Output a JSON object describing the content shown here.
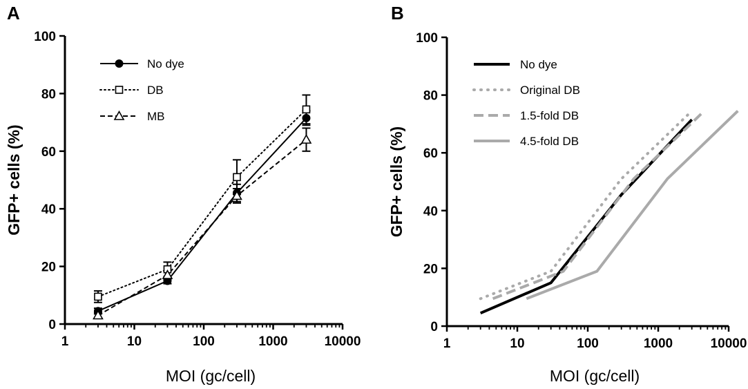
{
  "chart_data": [
    {
      "panel_label": "A",
      "type": "line",
      "xlabel": "MOI (gc/cell)",
      "ylabel": "GFP+ cells (%)",
      "x_scale": "log",
      "xlim": [
        1,
        10000
      ],
      "ylim": [
        0,
        100
      ],
      "x_ticks": [
        "1",
        "10",
        "100",
        "1000",
        "10000"
      ],
      "y_ticks": [
        "0",
        "20",
        "40",
        "60",
        "80",
        "100"
      ],
      "legend_position": "top-left",
      "series": [
        {
          "name": "No dye",
          "style": "solid",
          "marker": "filled-circle",
          "color": "#000000",
          "x": [
            3,
            30,
            300,
            3000
          ],
          "y": [
            4.5,
            15,
            45.5,
            71.5
          ],
          "err": [
            1.0,
            1.0,
            3.0,
            2.5
          ]
        },
        {
          "name": "DB",
          "style": "dotted",
          "marker": "open-square",
          "color": "#000000",
          "x": [
            3,
            30,
            300,
            3000
          ],
          "y": [
            9.5,
            19,
            51,
            74.5
          ],
          "err": [
            2.0,
            2.5,
            6.0,
            5.0
          ]
        },
        {
          "name": "MB",
          "style": "dashed",
          "marker": "open-triangle",
          "color": "#000000",
          "x": [
            3,
            30,
            300,
            3000
          ],
          "y": [
            3,
            17,
            44.5,
            64
          ],
          "err": [
            1.0,
            1.5,
            2.5,
            4.0
          ]
        }
      ]
    },
    {
      "panel_label": "B",
      "type": "line",
      "xlabel": "MOI (gc/cell)",
      "ylabel": "GFP+ cells (%)",
      "x_scale": "log",
      "xlim": [
        1,
        10000
      ],
      "ylim": [
        0,
        100
      ],
      "x_ticks": [
        "1",
        "10",
        "100",
        "1000",
        "10000"
      ],
      "y_ticks": [
        "0",
        "20",
        "40",
        "60",
        "80",
        "100"
      ],
      "legend_position": "top-left",
      "series": [
        {
          "name": "No dye",
          "style": "solid",
          "color": "#000000",
          "x": [
            3,
            30,
            300,
            3000
          ],
          "y": [
            4.5,
            15,
            45.5,
            71.5
          ]
        },
        {
          "name": "Original DB",
          "style": "dotted",
          "color": "#aaaaaa",
          "x": [
            3,
            30,
            300,
            3000
          ],
          "y": [
            9.5,
            19,
            51,
            74.5
          ]
        },
        {
          "name": "1.5-fold DB",
          "style": "dashed",
          "color": "#aaaaaa",
          "x": [
            4.5,
            45,
            450,
            4500
          ],
          "y": [
            9.5,
            19,
            51,
            74.5
          ]
        },
        {
          "name": "4.5-fold DB",
          "style": "solid",
          "color": "#aaaaaa",
          "x": [
            13.5,
            135,
            1350,
            13500
          ],
          "y": [
            9.5,
            19,
            51,
            74.5
          ]
        }
      ]
    }
  ]
}
